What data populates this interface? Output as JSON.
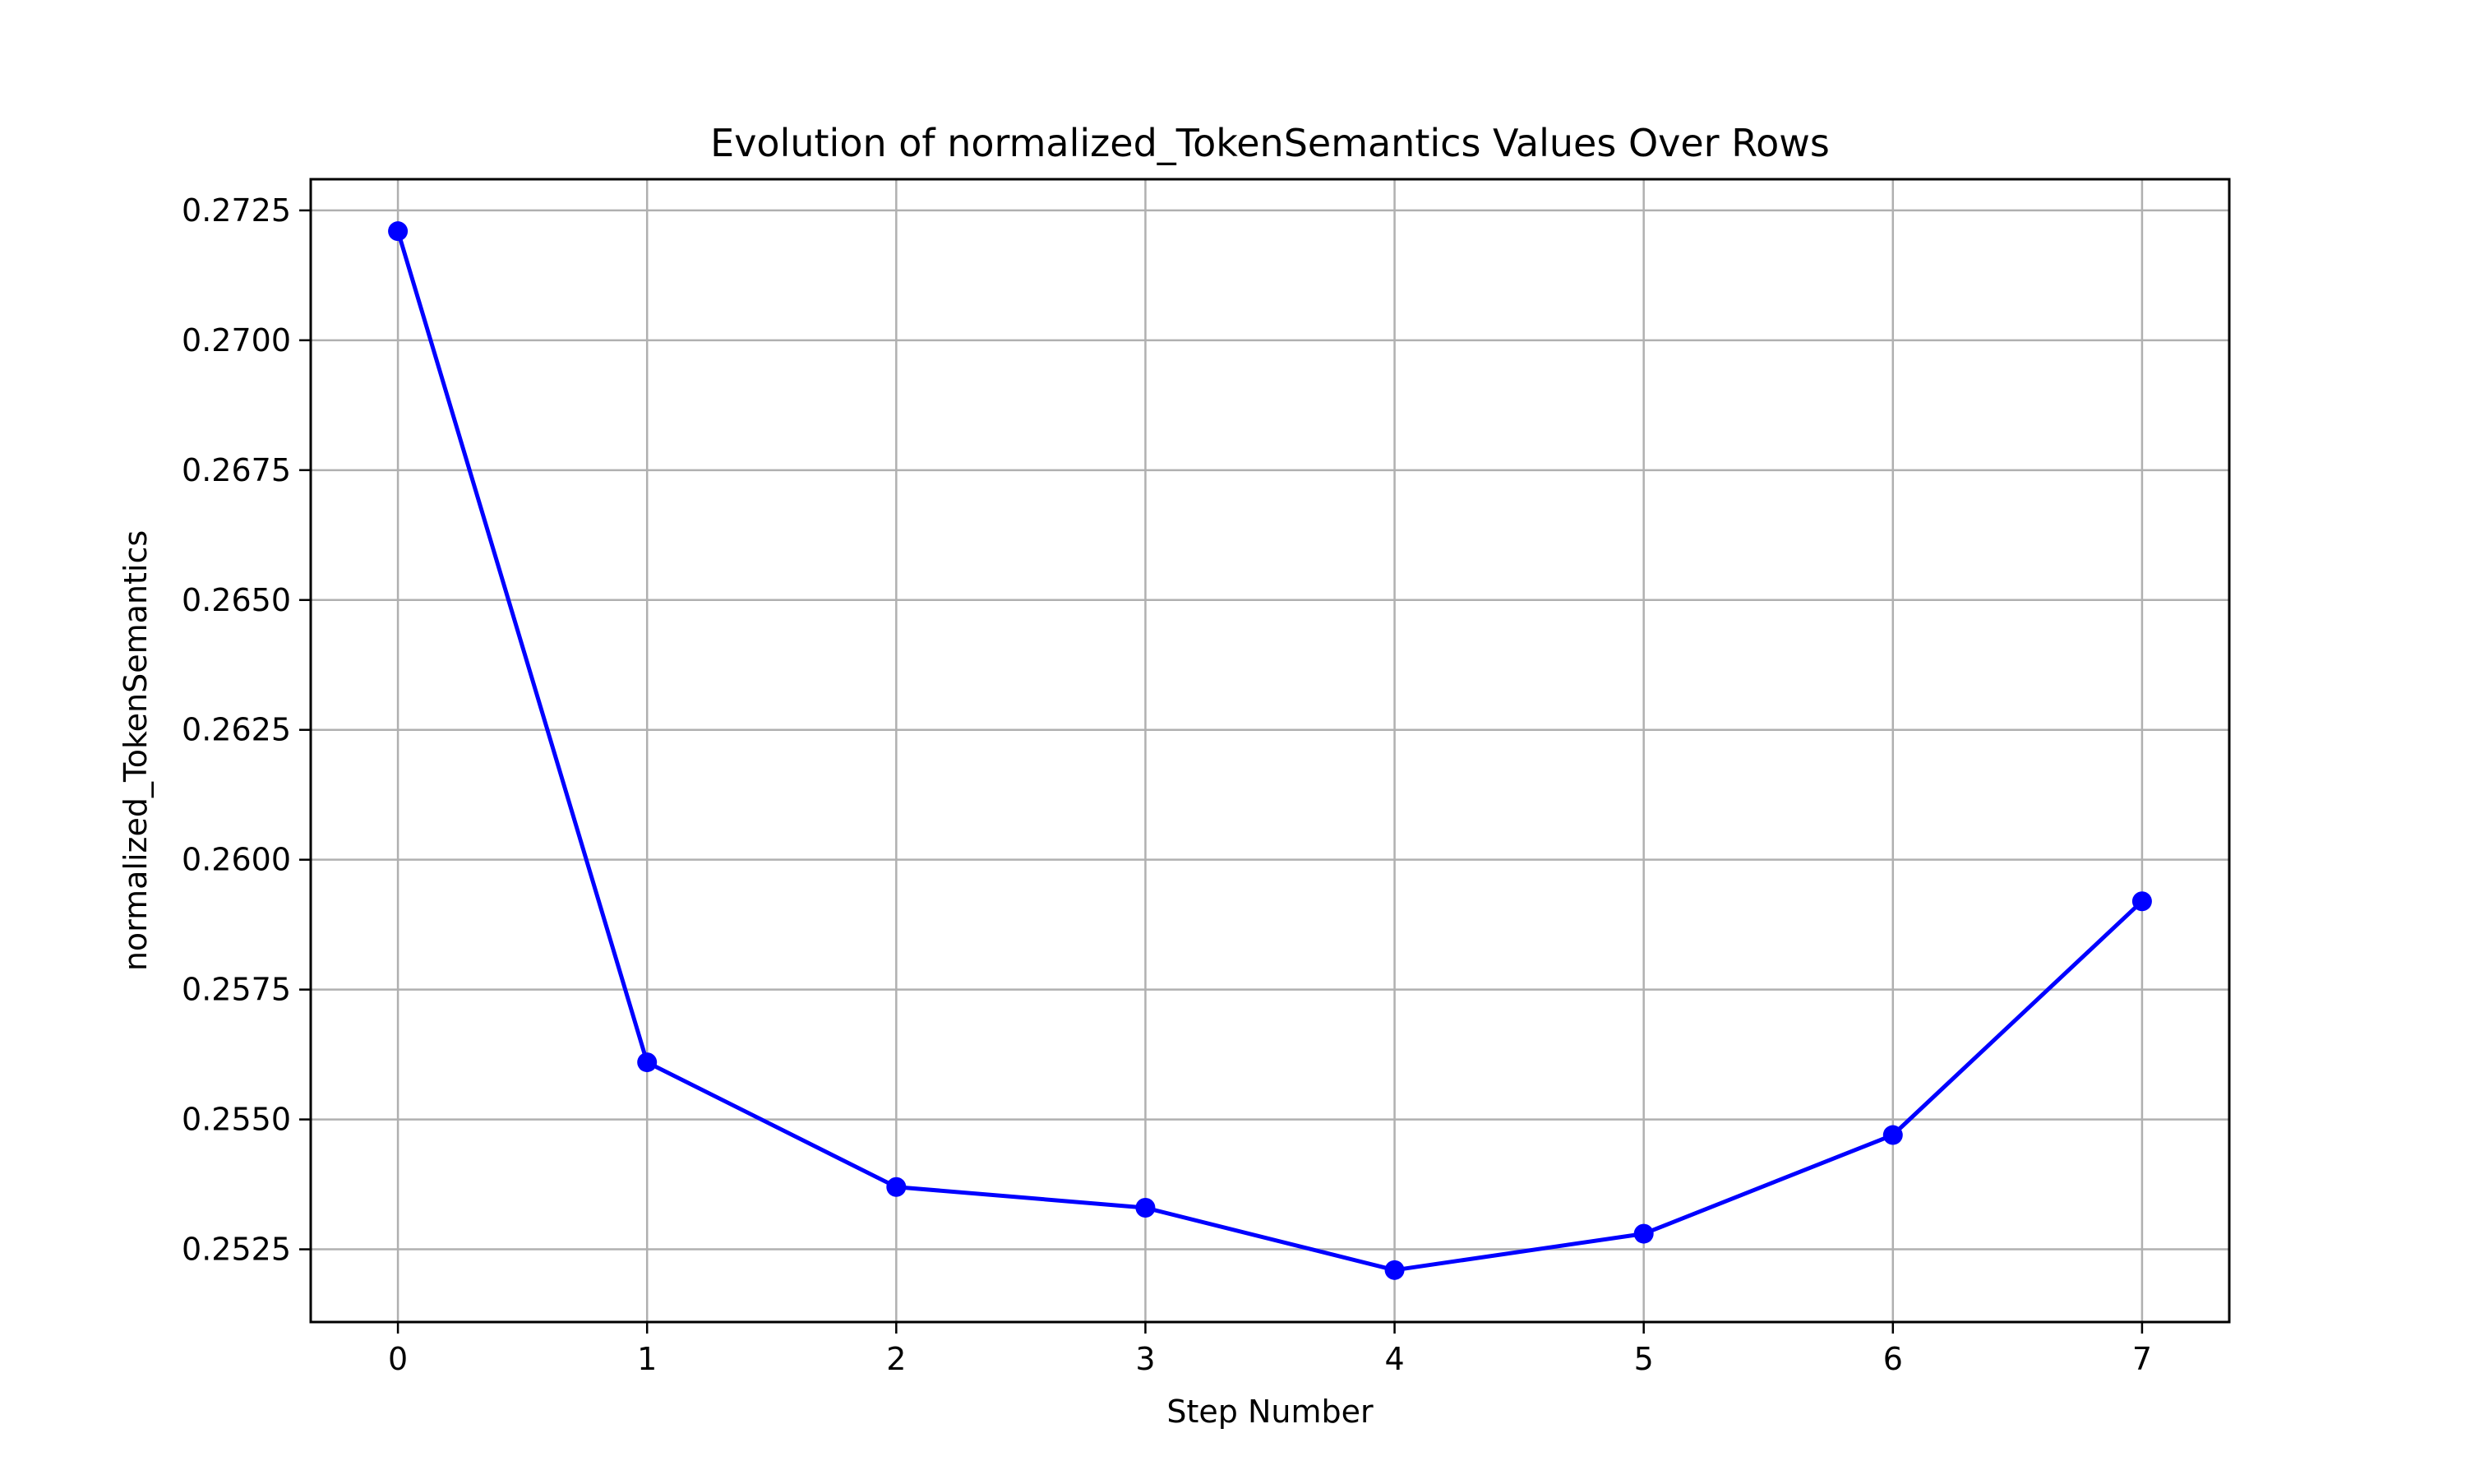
{
  "chart_data": {
    "type": "line",
    "title": "Evolution of normalized_TokenSemantics Values Over Rows",
    "xlabel": "Step Number",
    "ylabel": "normalized_TokenSemantics",
    "x": [
      0,
      1,
      2,
      3,
      4,
      5,
      6,
      7
    ],
    "x_ticks": [
      "0",
      "1",
      "2",
      "3",
      "4",
      "5",
      "6",
      "7"
    ],
    "xlim": [
      -0.35,
      7.35
    ],
    "y_ticks": [
      "0.2525",
      "0.2550",
      "0.2575",
      "0.2600",
      "0.2625",
      "0.2650",
      "0.2675",
      "0.2700",
      "0.2725"
    ],
    "ylim": [
      0.2511,
      0.2731
    ],
    "grid": true,
    "series": [
      {
        "values": [
          0.2721,
          0.2561,
          0.2537,
          0.2533,
          0.2521,
          0.2528,
          0.2547,
          0.2592
        ],
        "color": "#0000ff",
        "marker": "circle"
      }
    ]
  }
}
